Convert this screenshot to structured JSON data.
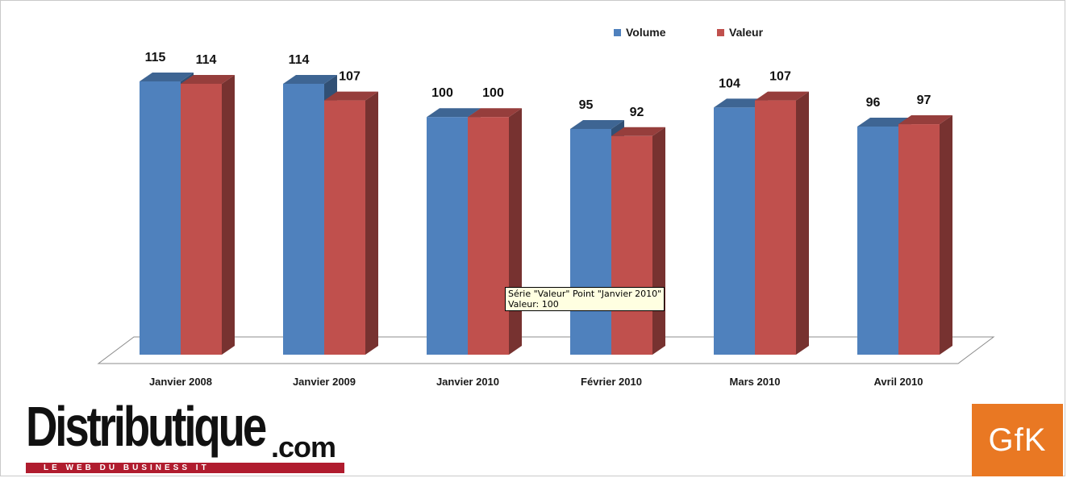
{
  "chart_data": {
    "type": "bar",
    "categories": [
      "Janvier 2008",
      "Janvier 2009",
      "Janvier 2010",
      "Février 2010",
      "Mars 2010",
      "Avril 2010"
    ],
    "series": [
      {
        "name": "Volume",
        "values": [
          115,
          114,
          100,
          95,
          104,
          96
        ],
        "color": "#4f81bd"
      },
      {
        "name": "Valeur",
        "values": [
          114,
          107,
          100,
          92,
          107,
          97
        ],
        "color": "#c0504d"
      }
    ],
    "ylim": [
      0,
      115
    ],
    "grid": false,
    "legend_position": "top-right",
    "data_labels": true,
    "style": "3d-column"
  },
  "tooltip": {
    "line1": "Série \"Valeur\" Point \"Janvier 2010\"",
    "line2": "Valeur: 100"
  },
  "logos": {
    "distributique_word": "Distributique",
    "distributique_com": ".com",
    "distributique_tagline": "LE WEB DU BUSINESS IT",
    "gfk": "GfK"
  },
  "colors": {
    "volume": "#4f81bd",
    "valeur": "#c0504d",
    "gfk_orange": "#e97823",
    "distributique_red": "#b01c2e"
  }
}
